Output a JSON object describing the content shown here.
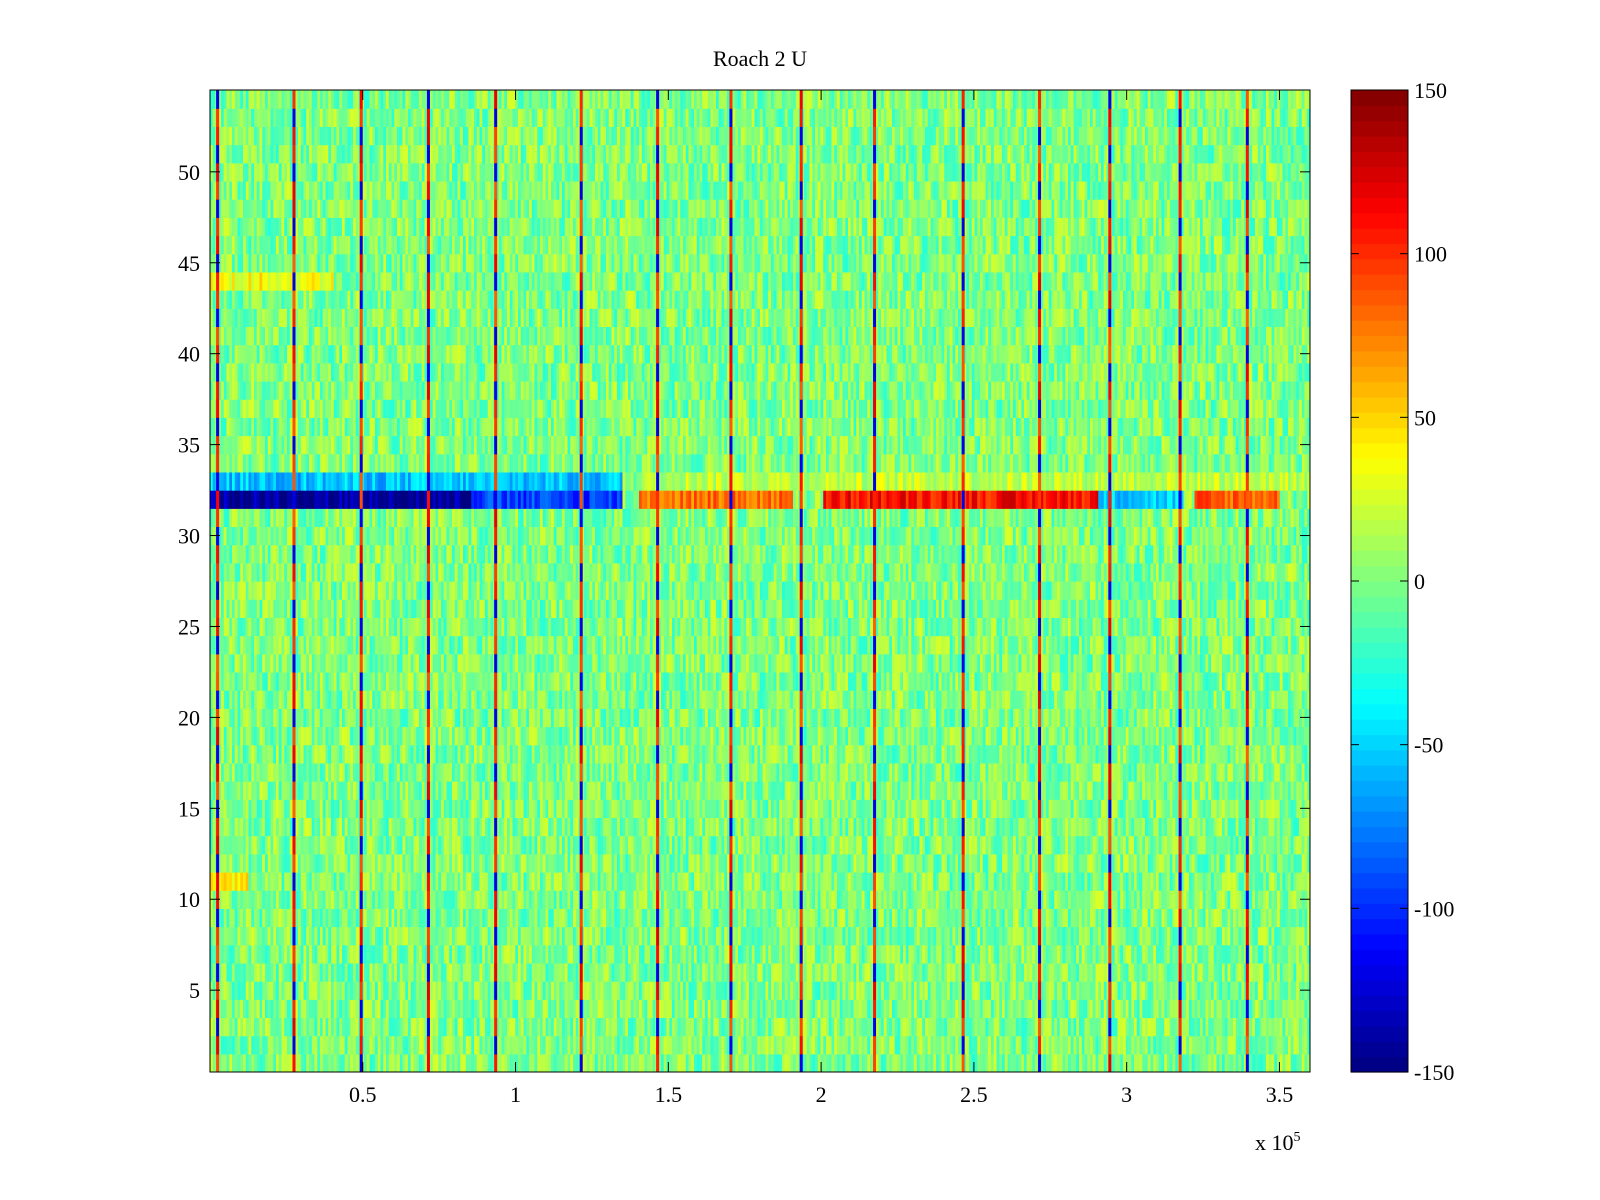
{
  "chart_data": {
    "type": "heatmap",
    "title": "Roach 2 U",
    "xlabel": "",
    "ylabel": "",
    "x_exponent_label": {
      "base": "x 10",
      "exponent": "5"
    },
    "xlim": [
      0,
      360000
    ],
    "ylim": [
      0.5,
      54.5
    ],
    "rows": 54,
    "xticks": [
      {
        "value": 50000,
        "label": "0.5"
      },
      {
        "value": 100000,
        "label": "1"
      },
      {
        "value": 150000,
        "label": "1.5"
      },
      {
        "value": 200000,
        "label": "2"
      },
      {
        "value": 250000,
        "label": "2.5"
      },
      {
        "value": 300000,
        "label": "3"
      },
      {
        "value": 350000,
        "label": "3.5"
      }
    ],
    "yticks": [
      {
        "value": 5,
        "label": "5"
      },
      {
        "value": 10,
        "label": "10"
      },
      {
        "value": 15,
        "label": "15"
      },
      {
        "value": 20,
        "label": "20"
      },
      {
        "value": 25,
        "label": "25"
      },
      {
        "value": 30,
        "label": "30"
      },
      {
        "value": 35,
        "label": "35"
      },
      {
        "value": 40,
        "label": "40"
      },
      {
        "value": 45,
        "label": "45"
      },
      {
        "value": 50,
        "label": "50"
      }
    ],
    "colorbar": {
      "colormap": "jet",
      "clim": [
        -150,
        150
      ],
      "ticks": [
        {
          "value": -150,
          "label": "-150"
        },
        {
          "value": -100,
          "label": "-100"
        },
        {
          "value": -50,
          "label": "-50"
        },
        {
          "value": 0,
          "label": "0"
        },
        {
          "value": 50,
          "label": "50"
        },
        {
          "value": 100,
          "label": "100"
        },
        {
          "value": 150,
          "label": "150"
        }
      ]
    },
    "background_level_range": [
      -30,
      30
    ],
    "periodic_spikes_x": [
      2000,
      27000,
      49000,
      71000,
      93000,
      121000,
      146000,
      170000,
      193000,
      217000,
      246000,
      271000,
      294000,
      317000,
      339000
    ],
    "bands": [
      {
        "row": 32,
        "segments": [
          {
            "x_start": 0,
            "x_end": 85000,
            "value": -140
          },
          {
            "x_start": 85000,
            "x_end": 135000,
            "value": -95
          },
          {
            "x_start": 140000,
            "x_end": 190000,
            "value": 80
          },
          {
            "x_start": 200000,
            "x_end": 290000,
            "value": 110
          },
          {
            "x_start": 290000,
            "x_end": 318000,
            "value": -50
          },
          {
            "x_start": 322000,
            "x_end": 350000,
            "value": 85
          }
        ]
      },
      {
        "row": 33,
        "segments": [
          {
            "x_start": 0,
            "x_end": 135000,
            "value": -55
          },
          {
            "x_start": 140000,
            "x_end": 360000,
            "value": 20
          }
        ]
      },
      {
        "row": 11,
        "segments": [
          {
            "x_start": 0,
            "x_end": 12000,
            "value": 45
          }
        ]
      },
      {
        "row": 44,
        "segments": [
          {
            "x_start": 0,
            "x_end": 40000,
            "value": 35
          }
        ]
      }
    ]
  }
}
